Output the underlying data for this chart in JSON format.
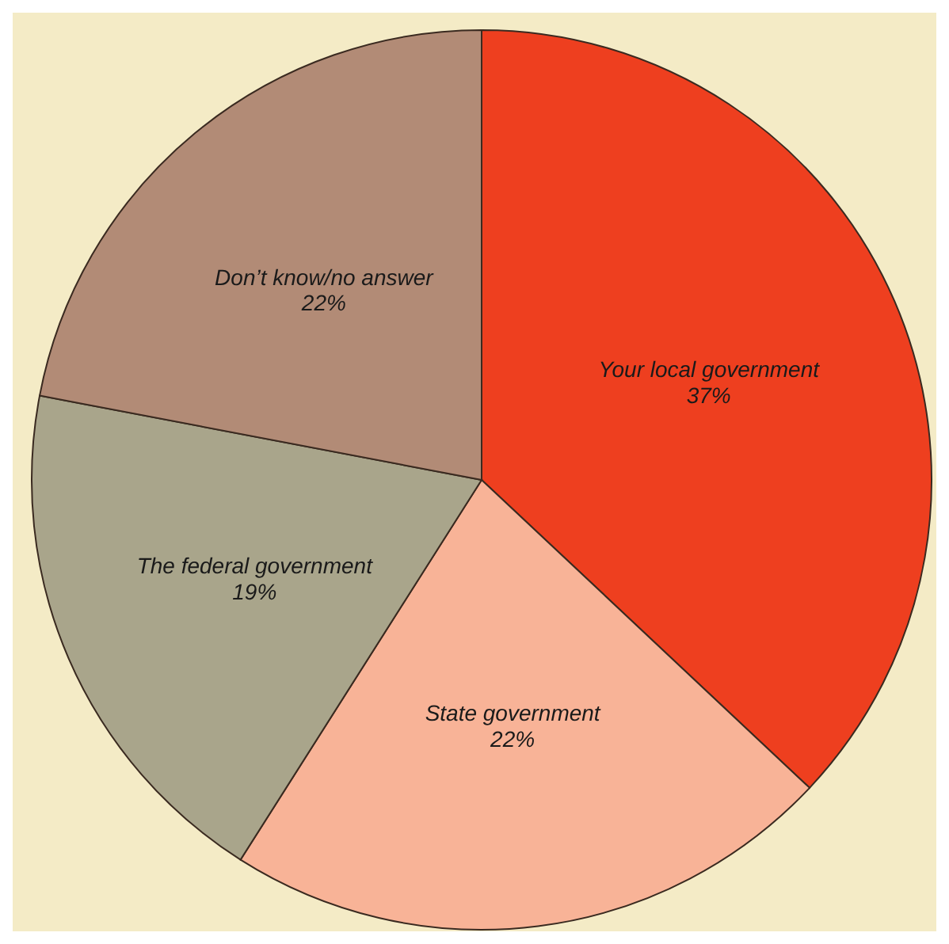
{
  "chart_data": {
    "type": "pie",
    "categories": [
      "Your local government",
      "State government",
      "The federal government",
      "Don’t know/no answer"
    ],
    "values": [
      37,
      22,
      19,
      22
    ],
    "colors": [
      "#ee3f1f",
      "#f8b397",
      "#a9a58b",
      "#b28b76"
    ],
    "value_labels": [
      "37%",
      "22%",
      "19%",
      "22%"
    ],
    "legend": false
  }
}
